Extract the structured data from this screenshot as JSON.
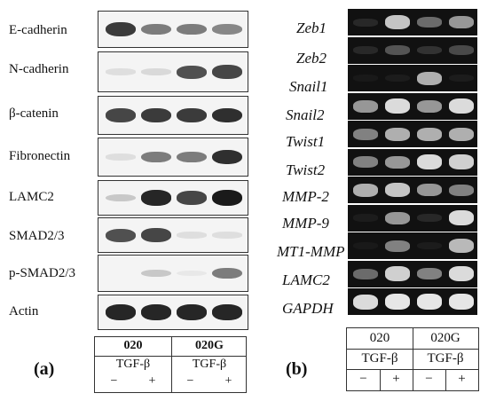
{
  "panel_a": {
    "label": "(a)",
    "rows": [
      "E-cadherin",
      "N-cadherin",
      "β-catenin",
      "Fibronectin",
      "LAMC2",
      "SMAD2/3",
      "p-SMAD2/3",
      "Actin"
    ],
    "groups": [
      "020",
      "020G"
    ],
    "treatment": [
      "TGF-β",
      "TGF-β"
    ],
    "signs": [
      "−",
      "+",
      "−",
      "+"
    ],
    "band_intensities": [
      [
        0.85,
        0.55,
        0.55,
        0.5
      ],
      [
        0.1,
        0.12,
        0.75,
        0.8
      ],
      [
        0.8,
        0.85,
        0.85,
        0.9
      ],
      [
        0.1,
        0.55,
        0.55,
        0.9
      ],
      [
        0.2,
        0.95,
        0.8,
        1.0
      ],
      [
        0.75,
        0.8,
        0.1,
        0.1
      ],
      [
        0.0,
        0.2,
        0.05,
        0.55
      ],
      [
        0.95,
        0.95,
        0.95,
        0.95
      ]
    ]
  },
  "panel_b": {
    "label": "(b)",
    "rows": [
      "Zeb1",
      "Zeb2",
      "Snail1",
      "Snail2",
      "Twist1",
      "Twist2",
      "MMP-2",
      "MMP-9",
      "MT1-MMP",
      "LAMC2",
      "GAPDH"
    ],
    "groups": [
      "020",
      "020G"
    ],
    "treatment": [
      "TGF-β",
      "TGF-β"
    ],
    "signs": [
      "−",
      "+",
      "−",
      "+"
    ],
    "band_intensities": [
      [
        0.1,
        0.8,
        0.4,
        0.6
      ],
      [
        0.1,
        0.3,
        0.15,
        0.25
      ],
      [
        0.0,
        0.05,
        0.7,
        0.05
      ],
      [
        0.6,
        0.9,
        0.6,
        0.9
      ],
      [
        0.5,
        0.7,
        0.7,
        0.7
      ],
      [
        0.5,
        0.6,
        0.9,
        0.85
      ],
      [
        0.7,
        0.8,
        0.6,
        0.5
      ],
      [
        0.05,
        0.6,
        0.1,
        0.9
      ],
      [
        0.0,
        0.5,
        0.05,
        0.75
      ],
      [
        0.4,
        0.85,
        0.5,
        0.9
      ],
      [
        0.9,
        0.95,
        0.95,
        0.95
      ]
    ]
  }
}
